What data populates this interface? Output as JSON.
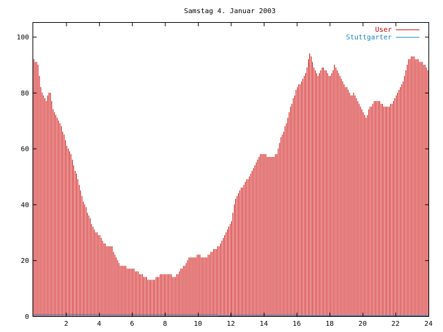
{
  "chart_data": {
    "type": "bar",
    "title": "Samstag 4. Januar 2003",
    "xlabel": "",
    "ylabel": "",
    "xlim": [
      0,
      24
    ],
    "ylim": [
      0,
      105
    ],
    "x_ticks": [
      2,
      4,
      6,
      8,
      10,
      12,
      14,
      16,
      18,
      20,
      22,
      24
    ],
    "y_ticks": [
      0,
      20,
      40,
      60,
      80,
      100
    ],
    "legend_position": "top-right",
    "legend": [
      "User",
      "Stuttgarter"
    ],
    "colors": {
      "User": "#cc0000",
      "Stuttgarter": "#1a86c8"
    },
    "anchors": [
      [
        0.0,
        92
      ],
      [
        0.3,
        90
      ],
      [
        0.5,
        80
      ],
      [
        0.8,
        77
      ],
      [
        1.0,
        81
      ],
      [
        1.2,
        74
      ],
      [
        1.5,
        71
      ],
      [
        1.8,
        66
      ],
      [
        2.0,
        62
      ],
      [
        2.3,
        58
      ],
      [
        2.5,
        53
      ],
      [
        2.8,
        47
      ],
      [
        3.0,
        42
      ],
      [
        3.3,
        37
      ],
      [
        3.5,
        34
      ],
      [
        3.8,
        30
      ],
      [
        4.0,
        29
      ],
      [
        4.3,
        26
      ],
      [
        4.5,
        25
      ],
      [
        4.8,
        25
      ],
      [
        5.0,
        21
      ],
      [
        5.3,
        18
      ],
      [
        5.5,
        18
      ],
      [
        5.8,
        17
      ],
      [
        6.0,
        17
      ],
      [
        6.3,
        16
      ],
      [
        6.5,
        15
      ],
      [
        6.8,
        14
      ],
      [
        7.0,
        13
      ],
      [
        7.3,
        13
      ],
      [
        7.5,
        14
      ],
      [
        7.8,
        15
      ],
      [
        8.0,
        15
      ],
      [
        8.3,
        15
      ],
      [
        8.5,
        14
      ],
      [
        8.8,
        15
      ],
      [
        9.0,
        17
      ],
      [
        9.3,
        19
      ],
      [
        9.5,
        21
      ],
      [
        9.8,
        21
      ],
      [
        10.0,
        22
      ],
      [
        10.3,
        21
      ],
      [
        10.5,
        21
      ],
      [
        10.8,
        23
      ],
      [
        11.0,
        24
      ],
      [
        11.3,
        25
      ],
      [
        11.5,
        28
      ],
      [
        11.8,
        31
      ],
      [
        12.0,
        33
      ],
      [
        12.2,
        40
      ],
      [
        12.5,
        45
      ],
      [
        12.8,
        47
      ],
      [
        13.0,
        49
      ],
      [
        13.3,
        52
      ],
      [
        13.5,
        54
      ],
      [
        13.8,
        58
      ],
      [
        14.0,
        58
      ],
      [
        14.3,
        57
      ],
      [
        14.5,
        57
      ],
      [
        14.8,
        58
      ],
      [
        15.0,
        63
      ],
      [
        15.3,
        68
      ],
      [
        15.5,
        72
      ],
      [
        15.8,
        78
      ],
      [
        16.0,
        82
      ],
      [
        16.3,
        84
      ],
      [
        16.5,
        86
      ],
      [
        16.8,
        94
      ],
      [
        17.0,
        90
      ],
      [
        17.3,
        86
      ],
      [
        17.5,
        89
      ],
      [
        17.8,
        88
      ],
      [
        18.0,
        85
      ],
      [
        18.3,
        90
      ],
      [
        18.5,
        88
      ],
      [
        18.8,
        84
      ],
      [
        19.0,
        82
      ],
      [
        19.3,
        79
      ],
      [
        19.5,
        80
      ],
      [
        19.8,
        76
      ],
      [
        20.0,
        73
      ],
      [
        20.2,
        71
      ],
      [
        20.4,
        74
      ],
      [
        20.7,
        77
      ],
      [
        21.0,
        77
      ],
      [
        21.3,
        75
      ],
      [
        21.5,
        75
      ],
      [
        21.8,
        76
      ],
      [
        22.0,
        79
      ],
      [
        22.3,
        82
      ],
      [
        22.5,
        85
      ],
      [
        22.8,
        92
      ],
      [
        23.0,
        93
      ],
      [
        23.3,
        92
      ],
      [
        23.5,
        91
      ],
      [
        23.8,
        90
      ],
      [
        24.0,
        88
      ]
    ],
    "stuttgarter_values": [
      [
        0.0,
        0.3
      ],
      [
        3.0,
        0.4
      ],
      [
        4.0,
        0.3
      ],
      [
        6.0,
        0.3
      ],
      [
        8.0,
        0.3
      ],
      [
        10.0,
        0.3
      ],
      [
        11.2,
        0.3
      ],
      [
        11.2,
        0
      ],
      [
        12.0,
        0
      ],
      [
        12.0,
        0.2
      ],
      [
        16.0,
        0.2
      ],
      [
        16.0,
        0
      ],
      [
        24.0,
        0
      ]
    ]
  }
}
